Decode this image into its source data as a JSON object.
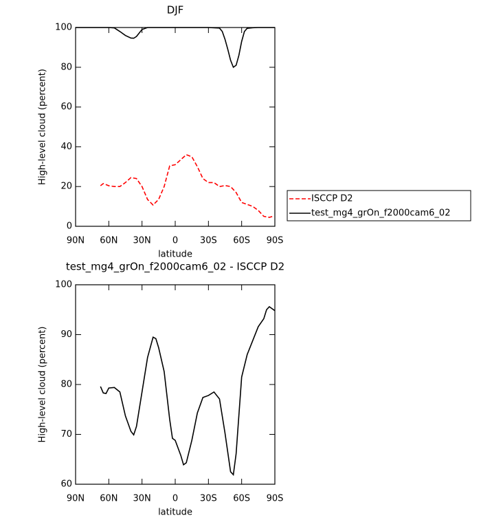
{
  "chart_data": [
    {
      "type": "line",
      "title": "DJF",
      "xlabel": "latitude",
      "ylabel": "High-level cloud (percent)",
      "xlim": [
        90,
        -90
      ],
      "xticks": [
        {
          "value": 90,
          "label": "90N"
        },
        {
          "value": 60,
          "label": "60N"
        },
        {
          "value": 30,
          "label": "30N"
        },
        0,
        {
          "value": -30,
          "label": "30S"
        },
        {
          "value": -60,
          "label": "60S"
        },
        {
          "value": -90,
          "label": "90S"
        }
      ],
      "ylim": [
        0,
        100
      ],
      "yticks": [
        0,
        20,
        40,
        60,
        80,
        100
      ],
      "series": [
        {
          "name": "ISCCP D2",
          "color": "#ff0000",
          "line_style": "dashed",
          "x": [
            67.5,
            65,
            60,
            55,
            50,
            45,
            40,
            35,
            30,
            25,
            20,
            15,
            10,
            5,
            0,
            -5,
            -10,
            -15,
            -20,
            -25,
            -30,
            -35,
            -40,
            -45,
            -50,
            -55,
            -60,
            -65,
            -70,
            -75,
            -80,
            -85,
            -88
          ],
          "values": [
            20.4,
            21.5,
            20.4,
            20,
            20,
            22,
            24.5,
            24,
            20,
            13.5,
            10.7,
            13.5,
            20,
            30.4,
            31,
            33.5,
            36,
            35,
            30,
            24,
            22,
            22,
            20,
            20.5,
            20,
            17,
            12,
            11,
            10,
            8,
            5,
            4.5,
            5
          ]
        },
        {
          "name": "test_mg4_grOn_f2000cam6_02",
          "color": "#000000",
          "line_style": "solid",
          "x": [
            90,
            80,
            70,
            60,
            55,
            50,
            45,
            40,
            37.5,
            35,
            30,
            25,
            0,
            -30,
            -40,
            -42.5,
            -45,
            -47.5,
            -50,
            -52.5,
            -55,
            -57.5,
            -60,
            -62.5,
            -65,
            -70,
            -75,
            -90
          ],
          "values": [
            100,
            100,
            100,
            100,
            99.8,
            98,
            96,
            94.7,
            94.6,
            95.5,
            99,
            100,
            100,
            100,
            99.7,
            98,
            94,
            89,
            83.5,
            80,
            81,
            86,
            93,
            98,
            99.6,
            99.9,
            100,
            100
          ]
        }
      ]
    },
    {
      "type": "line",
      "title": "test_mg4_grOn_f2000cam6_02 - ISCCP D2",
      "xlabel": "latitude",
      "ylabel": "High-level cloud (percent)",
      "xlim": [
        90,
        -90
      ],
      "xticks": [
        {
          "value": 90,
          "label": "90N"
        },
        {
          "value": 60,
          "label": "60N"
        },
        {
          "value": 30,
          "label": "30N"
        },
        0,
        {
          "value": -30,
          "label": "30S"
        },
        {
          "value": -60,
          "label": "60S"
        },
        {
          "value": -90,
          "label": "90S"
        }
      ],
      "ylim": [
        60,
        100
      ],
      "yticks": [
        60,
        70,
        80,
        90,
        100
      ],
      "series": [
        {
          "color": "#000000",
          "line_style": "solid",
          "x": [
            67.5,
            65,
            62.5,
            60,
            55,
            50,
            45,
            40,
            37.5,
            35,
            30,
            25,
            20,
            17.5,
            15,
            10,
            5,
            2.5,
            0,
            -5,
            -7.5,
            -10,
            -15,
            -20,
            -25,
            -30,
            -35,
            -40,
            -45,
            -50,
            -52.5,
            -55,
            -60,
            -65,
            -70,
            -75,
            -80,
            -82.5,
            -85,
            -90
          ],
          "values": [
            79.6,
            78.3,
            78.2,
            79.3,
            79.4,
            78.5,
            73.7,
            70.6,
            69.9,
            71.6,
            78.5,
            85.4,
            89.5,
            89.2,
            87.4,
            82.6,
            73,
            69.2,
            68.8,
            65.8,
            63.9,
            64.3,
            68.8,
            74.3,
            77.4,
            77.8,
            78.5,
            77.1,
            70.2,
            62.5,
            61.9,
            66.1,
            81.5,
            86,
            88.8,
            91.6,
            93.2,
            95,
            95.6,
            94.8
          ]
        }
      ]
    }
  ]
}
